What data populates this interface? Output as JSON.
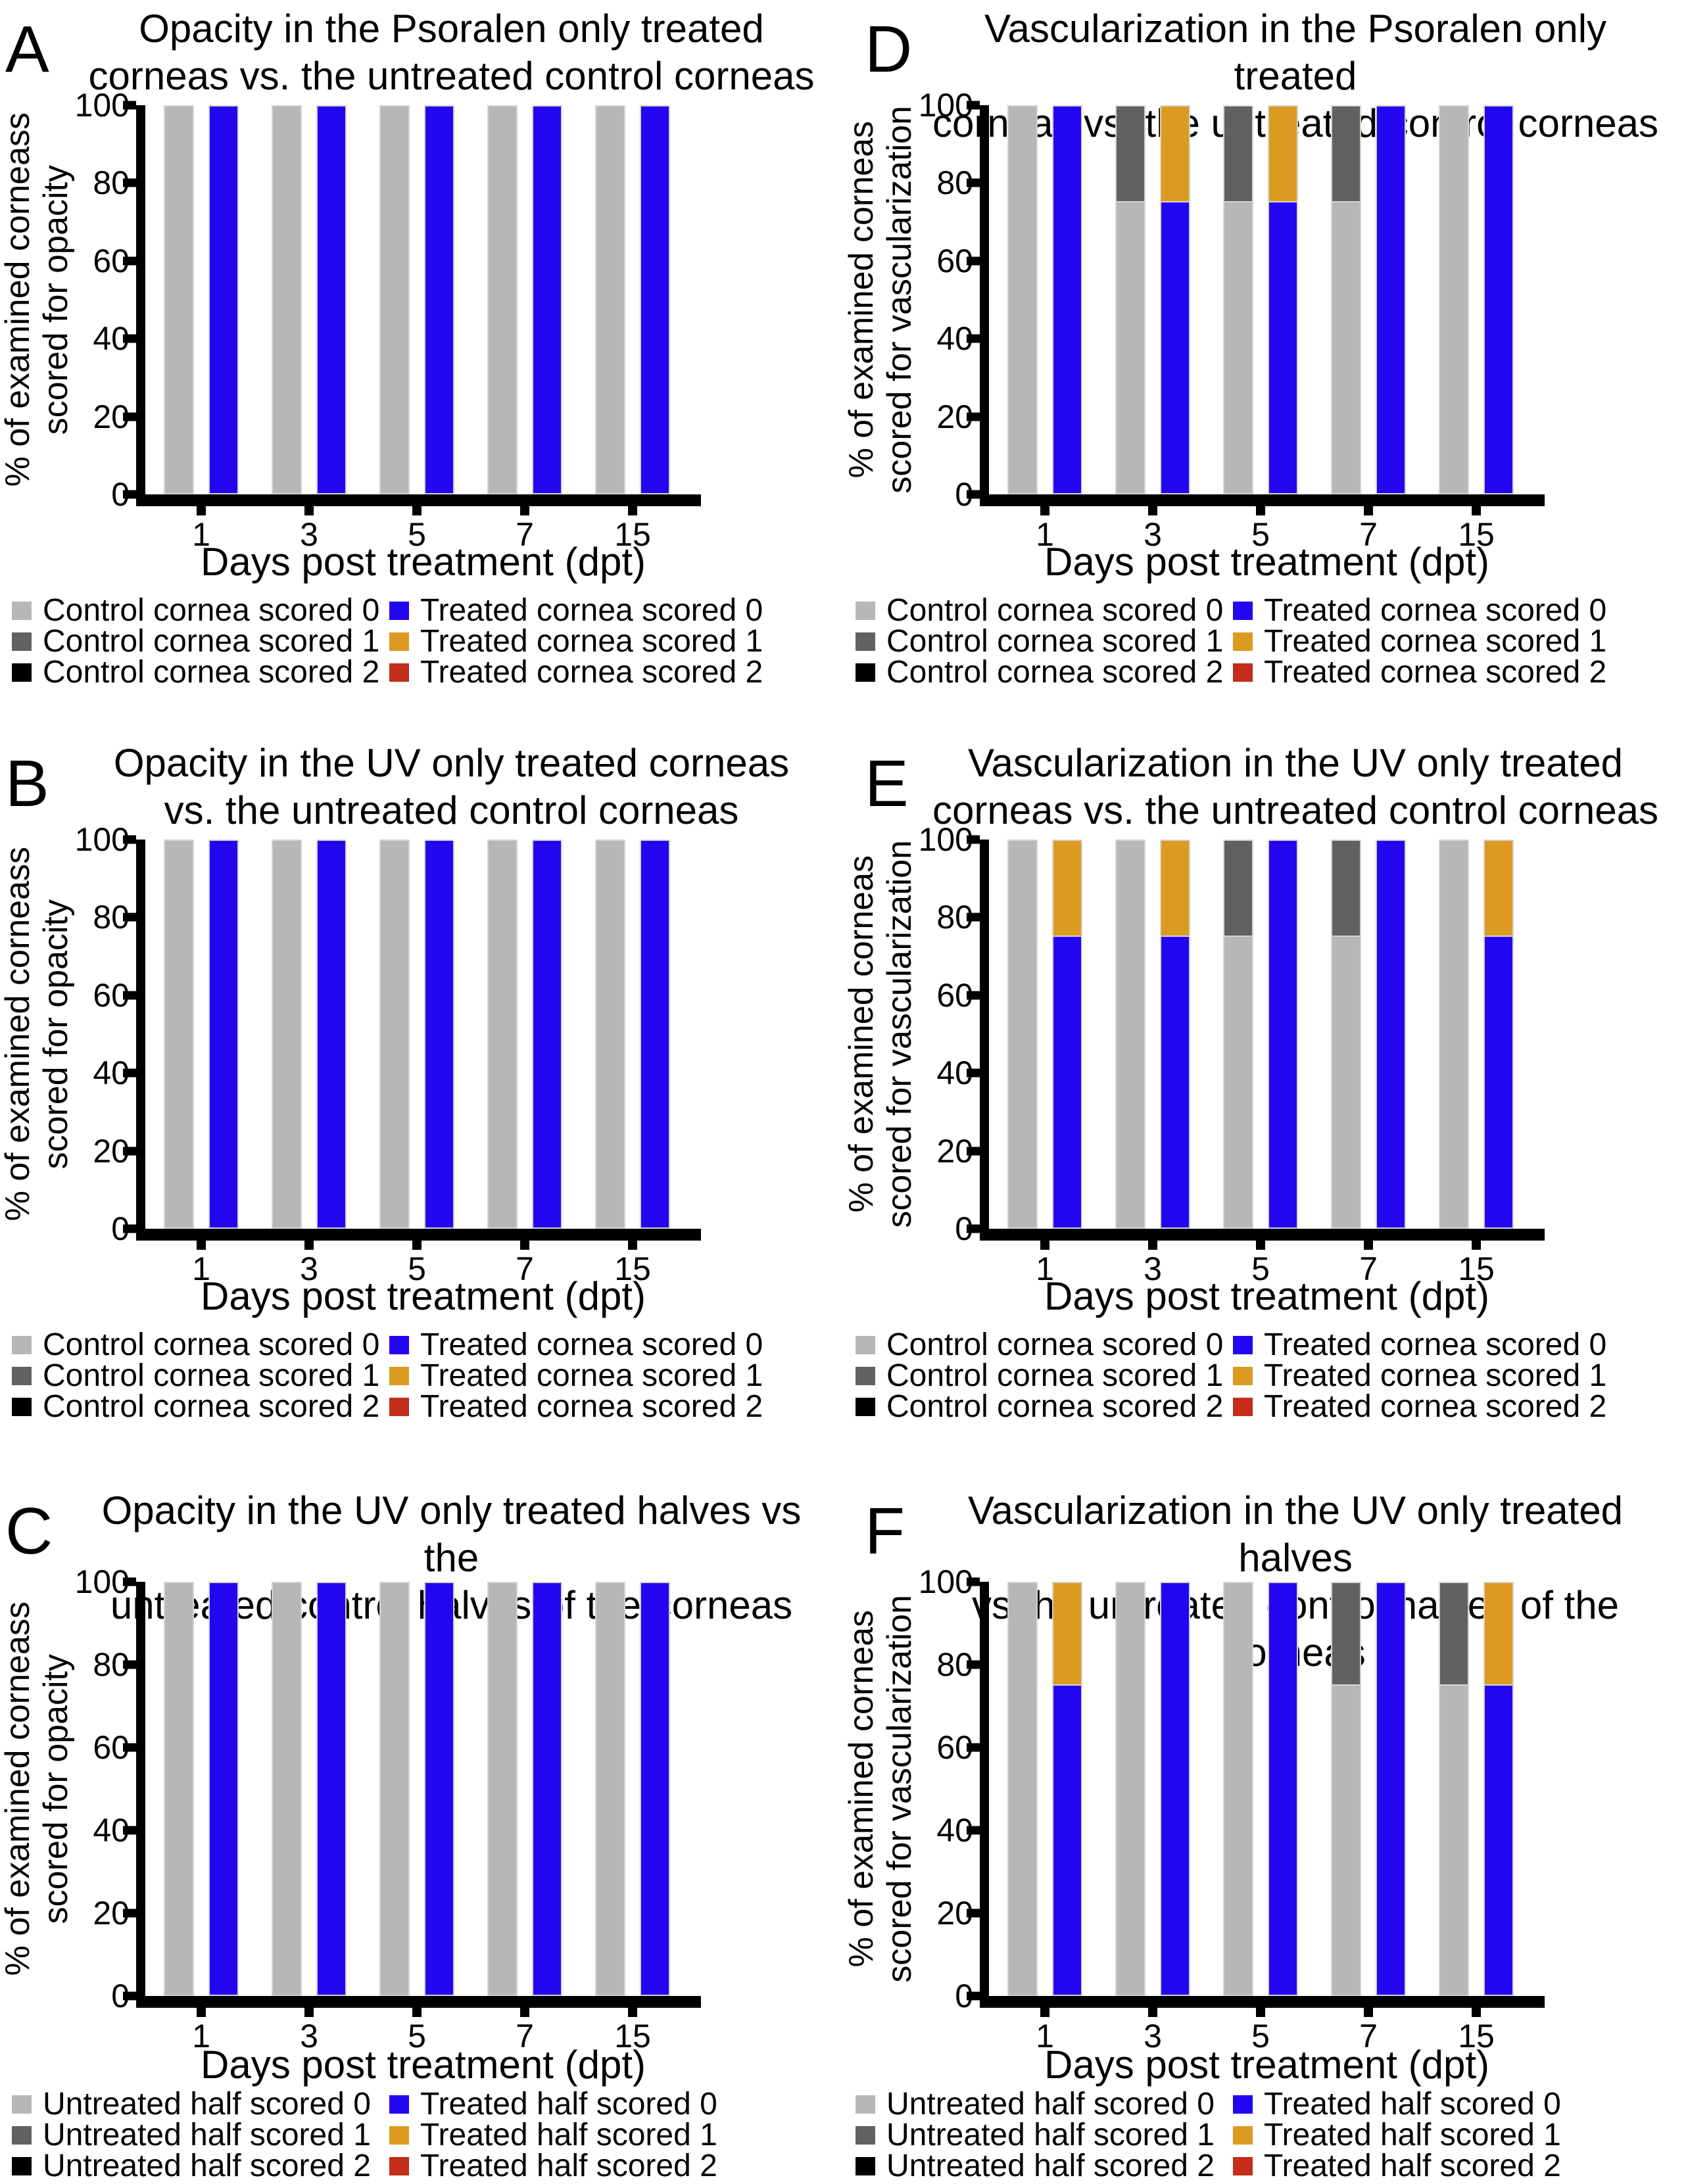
{
  "figure": {
    "x_axis_label": "Days post treatment (dpt)",
    "x_tick_labels": [
      "1",
      "3",
      "5",
      "7",
      "15"
    ],
    "y_tick_labels": [
      "100",
      "80",
      "60",
      "40",
      "20",
      "0"
    ],
    "score_colors": {
      "control": [
        "#b7b7ba",
        "#616164",
        "#000000"
      ],
      "treated": [
        "#2405f0",
        "#dc9b20",
        "#c32d19"
      ]
    },
    "bar_outline_color": "#d4d4d4"
  },
  "panels": [
    {
      "letter": "A",
      "title_line1": "Opacity in the Psoralen only treated",
      "title_line2": "corneas vs. the untreated control corneas",
      "y_axis_label_line1": "% of examined corneass",
      "y_axis_label_line2": "scored for opacity",
      "legend_left": [
        "Control cornea scored 0",
        "Control cornea scored 1",
        "Control cornea scored 2"
      ],
      "legend_right": [
        "Treated cornea scored 0",
        "Treated cornea scored 1",
        "Treated cornea scored 2"
      ],
      "chart_data": {
        "type": "bar",
        "stacked": true,
        "ylim": [
          0,
          100
        ],
        "grid": false,
        "categories": [
          "1",
          "3",
          "5",
          "7",
          "15"
        ],
        "score_levels": [
          "scored 0",
          "scored 1",
          "scored 2"
        ],
        "groups": [
          {
            "day": "1",
            "control": [
              100,
              0,
              0
            ],
            "treated": [
              100,
              0,
              0
            ]
          },
          {
            "day": "3",
            "control": [
              100,
              0,
              0
            ],
            "treated": [
              100,
              0,
              0
            ]
          },
          {
            "day": "5",
            "control": [
              100,
              0,
              0
            ],
            "treated": [
              100,
              0,
              0
            ]
          },
          {
            "day": "7",
            "control": [
              100,
              0,
              0
            ],
            "treated": [
              100,
              0,
              0
            ]
          },
          {
            "day": "15",
            "control": [
              100,
              0,
              0
            ],
            "treated": [
              100,
              0,
              0
            ]
          }
        ]
      }
    },
    {
      "letter": "D",
      "title_line1": "Vascularization in the Psoralen only treated",
      "title_line2": "corneas vs. the untreated control corneas",
      "y_axis_label_line1": "% of examined corneas",
      "y_axis_label_line2": "scored for vascularization",
      "legend_left": [
        "Control cornea scored 0",
        "Control cornea scored 1",
        "Control cornea scored 2"
      ],
      "legend_right": [
        "Treated cornea scored 0",
        "Treated cornea scored 1",
        "Treated cornea scored 2"
      ],
      "chart_data": {
        "type": "bar",
        "stacked": true,
        "ylim": [
          0,
          100
        ],
        "grid": false,
        "categories": [
          "1",
          "3",
          "5",
          "7",
          "15"
        ],
        "score_levels": [
          "scored 0",
          "scored 1",
          "scored 2"
        ],
        "groups": [
          {
            "day": "1",
            "control": [
              100,
              0,
              0
            ],
            "treated": [
              100,
              0,
              0
            ]
          },
          {
            "day": "3",
            "control": [
              75,
              25,
              0
            ],
            "treated": [
              75,
              25,
              0
            ]
          },
          {
            "day": "5",
            "control": [
              75,
              25,
              0
            ],
            "treated": [
              75,
              25,
              0
            ]
          },
          {
            "day": "7",
            "control": [
              75,
              25,
              0
            ],
            "treated": [
              100,
              0,
              0
            ]
          },
          {
            "day": "15",
            "control": [
              100,
              0,
              0
            ],
            "treated": [
              100,
              0,
              0
            ]
          }
        ]
      }
    },
    {
      "letter": "B",
      "title_line1": "Opacity in the UV only treated corneas",
      "title_line2": "vs. the untreated control corneas",
      "y_axis_label_line1": "% of examined corneass",
      "y_axis_label_line2": "scored for opacity",
      "legend_left": [
        "Control cornea scored 0",
        "Control cornea scored 1",
        "Control cornea scored 2"
      ],
      "legend_right": [
        "Treated cornea scored 0",
        "Treated cornea scored 1",
        "Treated cornea scored 2"
      ],
      "chart_data": {
        "type": "bar",
        "stacked": true,
        "ylim": [
          0,
          100
        ],
        "grid": false,
        "categories": [
          "1",
          "3",
          "5",
          "7",
          "15"
        ],
        "score_levels": [
          "scored 0",
          "scored 1",
          "scored 2"
        ],
        "groups": [
          {
            "day": "1",
            "control": [
              100,
              0,
              0
            ],
            "treated": [
              100,
              0,
              0
            ]
          },
          {
            "day": "3",
            "control": [
              100,
              0,
              0
            ],
            "treated": [
              100,
              0,
              0
            ]
          },
          {
            "day": "5",
            "control": [
              100,
              0,
              0
            ],
            "treated": [
              100,
              0,
              0
            ]
          },
          {
            "day": "7",
            "control": [
              100,
              0,
              0
            ],
            "treated": [
              100,
              0,
              0
            ]
          },
          {
            "day": "15",
            "control": [
              100,
              0,
              0
            ],
            "treated": [
              100,
              0,
              0
            ]
          }
        ]
      }
    },
    {
      "letter": "E",
      "title_line1": "Vascularization in the UV only treated",
      "title_line2": "corneas vs. the untreated control corneas",
      "y_axis_label_line1": "% of examined corneas",
      "y_axis_label_line2": "scored for vascularization",
      "legend_left": [
        "Control cornea scored 0",
        "Control cornea scored 1",
        "Control cornea scored 2"
      ],
      "legend_right": [
        "Treated cornea scored 0",
        "Treated cornea scored 1",
        "Treated cornea scored 2"
      ],
      "chart_data": {
        "type": "bar",
        "stacked": true,
        "ylim": [
          0,
          100
        ],
        "grid": false,
        "categories": [
          "1",
          "3",
          "5",
          "7",
          "15"
        ],
        "score_levels": [
          "scored 0",
          "scored 1",
          "scored 2"
        ],
        "groups": [
          {
            "day": "1",
            "control": [
              100,
              0,
              0
            ],
            "treated": [
              75,
              25,
              0
            ]
          },
          {
            "day": "3",
            "control": [
              100,
              0,
              0
            ],
            "treated": [
              75,
              25,
              0
            ]
          },
          {
            "day": "5",
            "control": [
              75,
              25,
              0
            ],
            "treated": [
              100,
              0,
              0
            ]
          },
          {
            "day": "7",
            "control": [
              75,
              25,
              0
            ],
            "treated": [
              100,
              0,
              0
            ]
          },
          {
            "day": "15",
            "control": [
              100,
              0,
              0
            ],
            "treated": [
              75,
              25,
              0
            ]
          }
        ]
      }
    },
    {
      "letter": "C",
      "title_line1": "Opacity in the UV only treated halves vs the",
      "title_line2": "untreated control halves of the corneas",
      "y_axis_label_line1": "% of examined corneass",
      "y_axis_label_line2": "scored for opacity",
      "legend_left": [
        "Untreated half scored 0",
        "Untreated half scored 1",
        "Untreated half scored 2"
      ],
      "legend_right": [
        "Treated half scored 0",
        "Treated half scored 1",
        "Treated half scored 2"
      ],
      "chart_data": {
        "type": "bar",
        "stacked": true,
        "ylim": [
          0,
          100
        ],
        "grid": false,
        "categories": [
          "1",
          "3",
          "5",
          "7",
          "15"
        ],
        "score_levels": [
          "scored 0",
          "scored 1",
          "scored 2"
        ],
        "groups": [
          {
            "day": "1",
            "control": [
              100,
              0,
              0
            ],
            "treated": [
              100,
              0,
              0
            ]
          },
          {
            "day": "3",
            "control": [
              100,
              0,
              0
            ],
            "treated": [
              100,
              0,
              0
            ]
          },
          {
            "day": "5",
            "control": [
              100,
              0,
              0
            ],
            "treated": [
              100,
              0,
              0
            ]
          },
          {
            "day": "7",
            "control": [
              100,
              0,
              0
            ],
            "treated": [
              100,
              0,
              0
            ]
          },
          {
            "day": "15",
            "control": [
              100,
              0,
              0
            ],
            "treated": [
              100,
              0,
              0
            ]
          }
        ]
      }
    },
    {
      "letter": "F",
      "title_line1": "Vascularization in the UV only treated halves",
      "title_line2": "vs the untreated control halves of the corneas",
      "y_axis_label_line1": "% of examined corneas",
      "y_axis_label_line2": "scored for vascularization",
      "legend_left": [
        "Untreated half scored 0",
        "Untreated half scored 1",
        "Untreated half scored 2"
      ],
      "legend_right": [
        "Treated half scored 0",
        "Treated half scored 1",
        "Treated half scored 2"
      ],
      "chart_data": {
        "type": "bar",
        "stacked": true,
        "ylim": [
          0,
          100
        ],
        "grid": false,
        "categories": [
          "1",
          "3",
          "5",
          "7",
          "15"
        ],
        "score_levels": [
          "scored 0",
          "scored 1",
          "scored 2"
        ],
        "groups": [
          {
            "day": "1",
            "control": [
              100,
              0,
              0
            ],
            "treated": [
              75,
              25,
              0
            ]
          },
          {
            "day": "3",
            "control": [
              100,
              0,
              0
            ],
            "treated": [
              100,
              0,
              0
            ]
          },
          {
            "day": "5",
            "control": [
              100,
              0,
              0
            ],
            "treated": [
              100,
              0,
              0
            ]
          },
          {
            "day": "7",
            "control": [
              75,
              25,
              0
            ],
            "treated": [
              100,
              0,
              0
            ]
          },
          {
            "day": "15",
            "control": [
              75,
              25,
              0
            ],
            "treated": [
              75,
              25,
              0
            ]
          }
        ]
      }
    }
  ]
}
